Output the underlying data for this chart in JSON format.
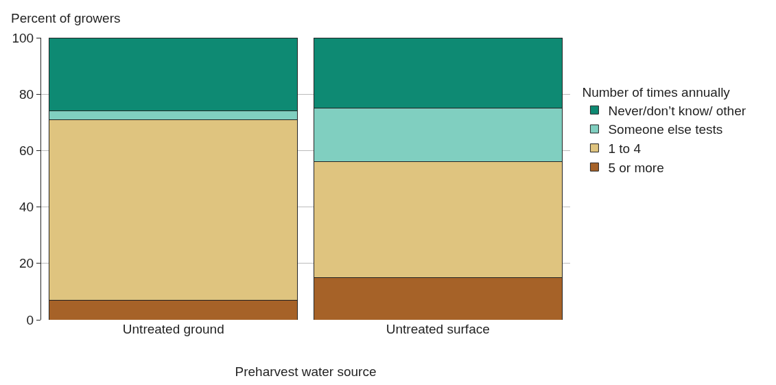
{
  "chart_data": {
    "type": "bar",
    "stacked": true,
    "ylabel": "Percent of growers",
    "xlabel": "Preharvest water source",
    "legend_title": "Number of times annually",
    "categories": [
      "Untreated ground",
      "Untreated surface"
    ],
    "series": [
      {
        "name": "5 or more",
        "color": "#a66228",
        "values": [
          7,
          15
        ]
      },
      {
        "name": "1 to 4",
        "color": "#dfc47f",
        "values": [
          64,
          41
        ]
      },
      {
        "name": "Someone else tests",
        "color": "#80cfc0",
        "values": [
          3,
          19
        ]
      },
      {
        "name": "Never/don’t know/ other",
        "color": "#0e8a73",
        "values": [
          26,
          25
        ]
      }
    ],
    "ylim": [
      0,
      100
    ],
    "yticks": [
      0,
      20,
      40,
      60,
      80,
      100
    ],
    "grid": "y",
    "legend": "right"
  }
}
